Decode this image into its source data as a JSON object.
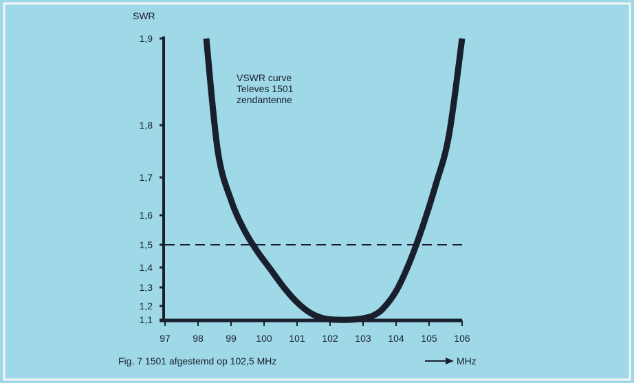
{
  "chart_data": {
    "type": "line",
    "ylabel": "SWR",
    "xlabel": "MHz",
    "caption": "Fig. 7  1501 afgestemd op 102,5 MHz",
    "annotation": [
      "VSWR curve",
      "Televes 1501",
      "zendantenne"
    ],
    "xlim": [
      97,
      106
    ],
    "x_ticks": [
      "97",
      "98",
      "99",
      "100",
      "101",
      "102",
      "103",
      "104",
      "105",
      "106"
    ],
    "x_tick_values": [
      97,
      98,
      99,
      100,
      101,
      102,
      103,
      104,
      105,
      106
    ],
    "y_ticks": [
      "1,1",
      "1,2",
      "1,3",
      "1,4",
      "1,5",
      "1,6",
      "1,7",
      "1,8",
      "1,9"
    ],
    "y_tick_values": [
      1.1,
      1.2,
      1.3,
      1.4,
      1.5,
      1.6,
      1.7,
      1.8,
      1.9
    ],
    "series": [
      {
        "x": [
          98.25,
          98.6,
          99.0,
          99.4,
          99.8,
          100.2,
          100.6,
          101.0,
          101.4,
          101.8,
          102.2,
          102.6,
          103.0,
          103.3,
          103.6,
          104.0,
          104.4,
          104.8,
          105.2,
          105.6,
          106.0
        ],
        "y": [
          1.9,
          1.75,
          1.64,
          1.55,
          1.47,
          1.39,
          1.3,
          1.22,
          1.15,
          1.11,
          1.1,
          1.1,
          1.11,
          1.13,
          1.18,
          1.28,
          1.42,
          1.56,
          1.68,
          1.78,
          1.9
        ]
      }
    ],
    "reference_line": {
      "y": 1.5,
      "style": "dashed"
    }
  },
  "colors": {
    "background": "#9fd8e6",
    "border": "#f3f6f4",
    "ink": "#1a1f2e"
  }
}
